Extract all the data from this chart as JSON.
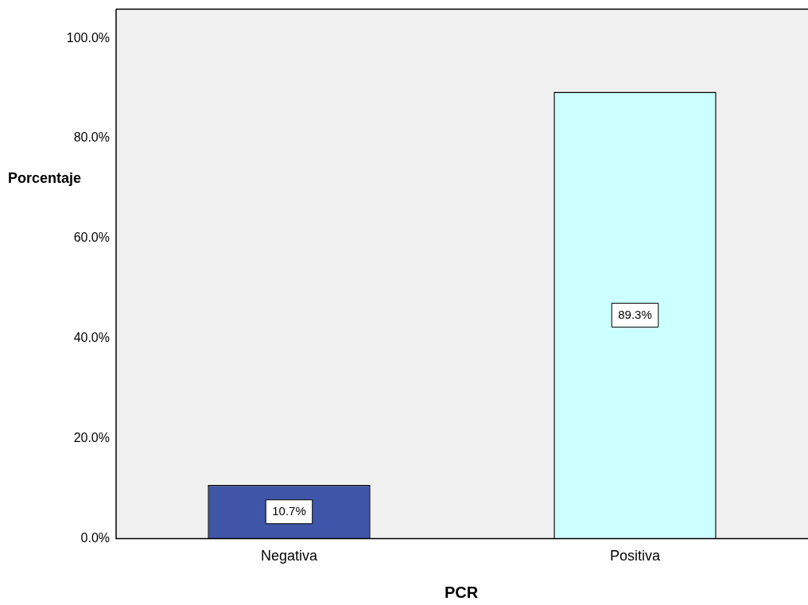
{
  "chart_data": {
    "type": "bar",
    "xlabel": "PCR",
    "ylabel": "Porcentaje",
    "categories": [
      "Negativa",
      "Positiva"
    ],
    "values": [
      10.7,
      89.3
    ],
    "colors": [
      "#3f56a8",
      "#ccffff"
    ],
    "value_labels": [
      "10.7%",
      "89.3%"
    ],
    "ylim": [
      0,
      105.8
    ],
    "yticks": [
      {
        "value": 0,
        "label": "0.0%"
      },
      {
        "value": 20,
        "label": "20.0%"
      },
      {
        "value": 40,
        "label": "40.0%"
      },
      {
        "value": 60,
        "label": "60.0%"
      },
      {
        "value": 80,
        "label": "80.0%"
      },
      {
        "value": 100,
        "label": "100.0%"
      }
    ],
    "grid": false,
    "legend": false
  }
}
